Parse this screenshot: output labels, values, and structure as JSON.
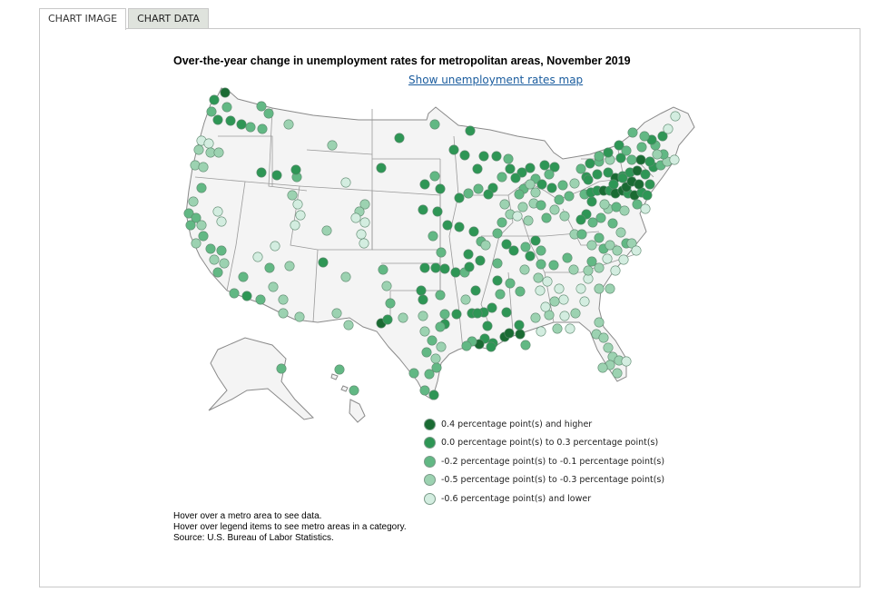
{
  "tabs": [
    {
      "label": "CHART IMAGE",
      "active": true
    },
    {
      "label": "CHART DATA",
      "active": false
    }
  ],
  "title": "Over-the-year change in unemployment rates for metropolitan areas, November 2019",
  "map_link": "Show unemployment rates map",
  "legend": [
    {
      "label": "0.4 percentage point(s) and higher",
      "color": "#1a6b33"
    },
    {
      "label": "0.0 percentage point(s) to 0.3 percentage point(s)",
      "color": "#2e9655"
    },
    {
      "label": "-0.2 percentage point(s) to -0.1 percentage point(s)",
      "color": "#62b884"
    },
    {
      "label": "-0.5 percentage point(s) to -0.3 percentage point(s)",
      "color": "#9cd2b1"
    },
    {
      "label": "-0.6 percentage point(s) and lower",
      "color": "#d3ede0"
    }
  ],
  "notes": [
    "Hover over a metro area to see data.",
    "Hover over legend items to see metro areas in a category.",
    "Source: U.S. Bureau of Labor Statistics."
  ]
}
